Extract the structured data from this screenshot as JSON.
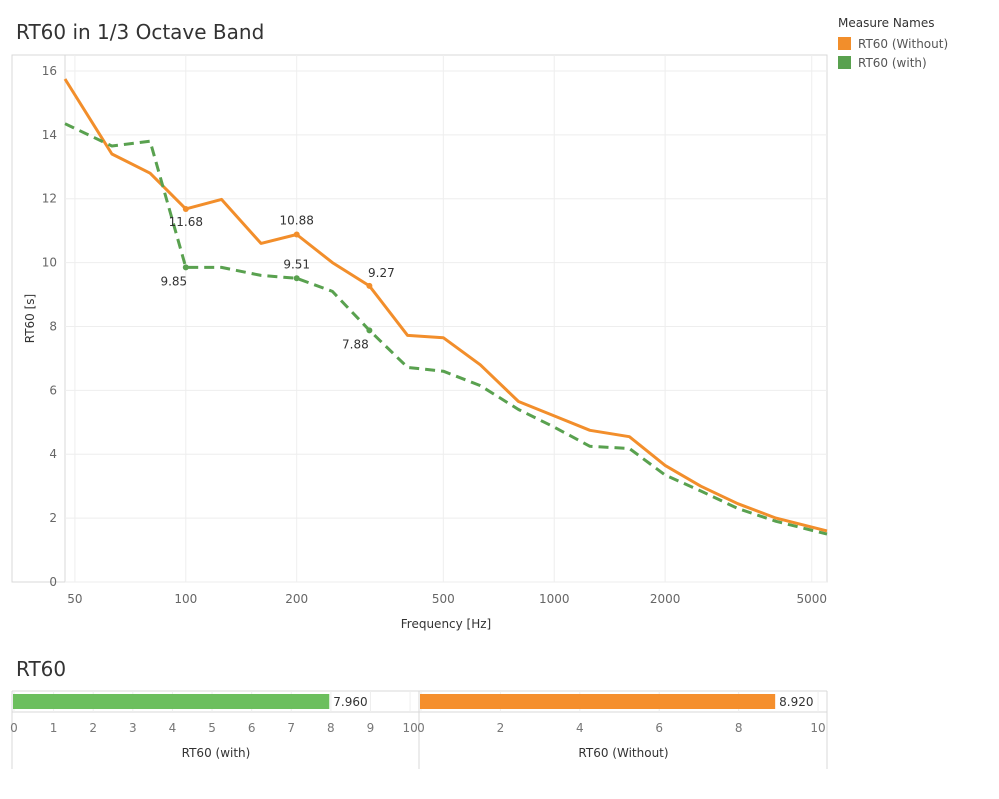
{
  "title": "RT60 in 1/3 Octave Band",
  "legend": {
    "title": "Measure Names",
    "items": [
      {
        "label": "RT60 (Without)",
        "color": "#f28e2b"
      },
      {
        "label": "RT60 (with)",
        "color": "#59a14f"
      }
    ]
  },
  "colors": {
    "without": "#f28e2b",
    "with": "#59a14f",
    "bar_with": "#6cbf5e",
    "bar_without": "#f58f2d"
  },
  "chart_data": [
    {
      "type": "line",
      "title": "RT60 in 1/3 Octave Band",
      "xlabel": "Frequency [Hz]",
      "ylabel": "RT60 [s]",
      "x_scale": "log",
      "xlim": [
        47,
        5500
      ],
      "ylim": [
        0,
        16.5
      ],
      "x_ticks": [
        50,
        100,
        200,
        500,
        1000,
        2000,
        5000
      ],
      "y_ticks": [
        0,
        2,
        4,
        6,
        8,
        10,
        12,
        14,
        16
      ],
      "grid": true,
      "legend_position": "top-right",
      "x": [
        47,
        63,
        80,
        100,
        125,
        160,
        200,
        250,
        315,
        400,
        500,
        630,
        800,
        1000,
        1250,
        1600,
        2000,
        2500,
        3150,
        4000,
        5500
      ],
      "series": [
        {
          "name": "RT60 (Without)",
          "style": "solid",
          "values": [
            15.75,
            13.4,
            12.8,
            11.68,
            11.98,
            10.6,
            10.88,
            10.0,
            9.27,
            7.72,
            7.65,
            6.8,
            5.65,
            5.2,
            4.75,
            4.55,
            3.65,
            3.0,
            2.45,
            2.0,
            1.6
          ],
          "labeled_points": [
            {
              "x": 100,
              "y": 11.68,
              "label": "11.68"
            },
            {
              "x": 200,
              "y": 10.88,
              "label": "10.88"
            },
            {
              "x": 315,
              "y": 9.27,
              "label": "9.27"
            }
          ]
        },
        {
          "name": "RT60 (with)",
          "style": "dashed",
          "values": [
            14.35,
            13.65,
            13.8,
            9.85,
            9.85,
            9.6,
            9.51,
            9.1,
            7.88,
            6.72,
            6.6,
            6.15,
            5.4,
            4.85,
            4.25,
            4.18,
            3.35,
            2.85,
            2.3,
            1.9,
            1.5
          ],
          "labeled_points": [
            {
              "x": 100,
              "y": 9.85,
              "label": "9.85"
            },
            {
              "x": 200,
              "y": 9.51,
              "label": "9.51"
            },
            {
              "x": 315,
              "y": 7.88,
              "label": "7.88"
            }
          ]
        }
      ]
    },
    {
      "type": "bar",
      "title": "RT60",
      "orientation": "horizontal",
      "panels": [
        {
          "xlabel": "RT60 (with)",
          "value": 7.96,
          "value_label": "7.960",
          "xlim": [
            0,
            10.2
          ],
          "x_ticks": [
            0,
            1,
            2,
            3,
            4,
            5,
            6,
            7,
            8,
            9,
            10
          ]
        },
        {
          "xlabel": "RT60 (Without)",
          "value": 8.92,
          "value_label": "8.920",
          "xlim": [
            0,
            10.2
          ],
          "x_ticks": [
            0,
            2,
            4,
            6,
            8,
            10
          ]
        }
      ]
    }
  ]
}
